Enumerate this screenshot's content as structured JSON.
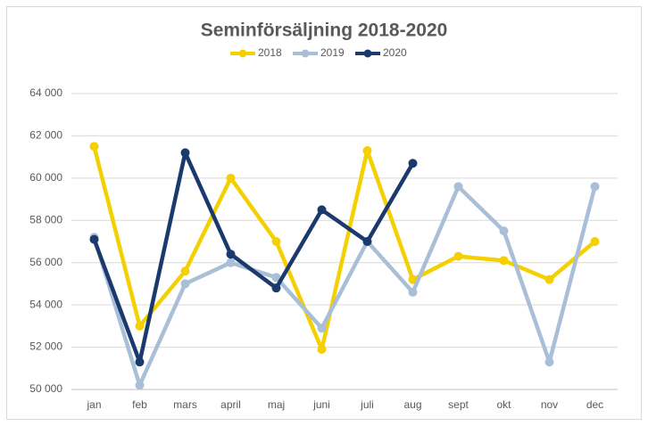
{
  "chart_data": {
    "type": "line",
    "title": "Seminförsäljning 2018-2020",
    "categories": [
      "jan",
      "feb",
      "mars",
      "april",
      "maj",
      "juni",
      "juli",
      "aug",
      "sept",
      "okt",
      "nov",
      "dec"
    ],
    "series": [
      {
        "name": "2018",
        "color": "#f5d000",
        "values": [
          61500,
          53000,
          55600,
          60000,
          57000,
          51900,
          61300,
          55200,
          56300,
          56100,
          55200,
          57000
        ]
      },
      {
        "name": "2019",
        "color": "#a9bfd8",
        "values": [
          57200,
          50200,
          55000,
          56000,
          55300,
          52900,
          57000,
          54600,
          59600,
          57500,
          51300,
          59600
        ]
      },
      {
        "name": "2020",
        "color": "#1a3a6e",
        "values": [
          57100,
          51300,
          61200,
          56400,
          54800,
          58500,
          57000,
          60700,
          null,
          null,
          null,
          null
        ]
      }
    ],
    "ylim": [
      50000,
      64000
    ],
    "yticks": [
      {
        "value": 50000,
        "label": "50 000"
      },
      {
        "value": 52000,
        "label": "52 000"
      },
      {
        "value": 54000,
        "label": "54 000"
      },
      {
        "value": 56000,
        "label": "56 000"
      },
      {
        "value": 58000,
        "label": "58 000"
      },
      {
        "value": 60000,
        "label": "60 000"
      },
      {
        "value": 62000,
        "label": "62 000"
      },
      {
        "value": 64000,
        "label": "64 000"
      }
    ],
    "grid": true,
    "legend": "top"
  }
}
